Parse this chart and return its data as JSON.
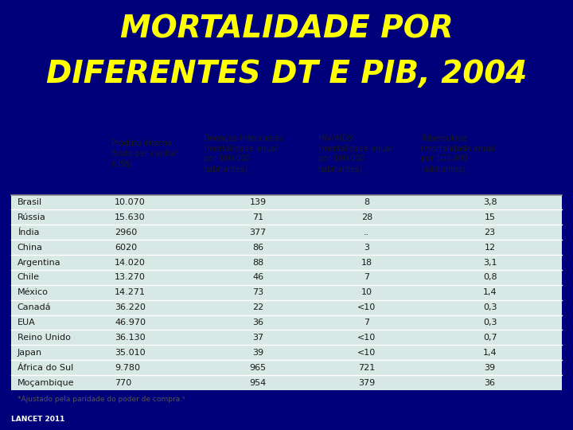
{
  "title_line1": "MORTALIDADE POR",
  "title_line2": "DIFERENTES DT E PIB, 2004",
  "title_color": "#FFFF00",
  "title_bg_color": "#00007A",
  "table_bg_color": "#D8E8E4",
  "row_alt_color": "#C8DDD8",
  "footer_bg_color": "#00007A",
  "footer_text": "LANCET 2011",
  "footer_text_color": "#FFFFFF",
  "footnote": "*Ajustado pela paridade do poder de compra.ˢ",
  "col_headers": [
    "Produto Interno\nBruto per capita*\n(US$)",
    "Doenças Infecciosas\n(mortalidade anual\npor 100.000\nhabitantes)",
    "HIV/AIDS\n(mortalidade anual\npor 100.000\nhabitantes)",
    "Tuberculose\n(mortalidade anual\npor 100.000\nhabitantes)"
  ],
  "countries": [
    "Brasil",
    "Rússia",
    "Índia",
    "China",
    "Argentina",
    "Chile",
    "México",
    "Canadá",
    "EUA",
    "Reino Unido",
    "Japan",
    "África do Sul",
    "Moçambique"
  ],
  "pib": [
    "10.070",
    "15.630",
    "2960",
    "6020",
    "14.020",
    "13.270",
    "14.271",
    "36.220",
    "46.970",
    "36.130",
    "35.010",
    "9.780",
    "770"
  ],
  "doencas": [
    "139",
    "71",
    "377",
    "86",
    "88",
    "46",
    "73",
    "22",
    "36",
    "37",
    "39",
    "965",
    "954"
  ],
  "hiv": [
    "8",
    "28",
    "..",
    "3",
    "18",
    "7",
    "10",
    "<10",
    "7",
    "<10",
    "<10",
    "721",
    "379"
  ],
  "tb": [
    "3,8",
    "15",
    "23",
    "12",
    "3,1",
    "0,8",
    "1,4",
    "0,3",
    "0,3",
    "0,7",
    "1,4",
    "39",
    "36"
  ],
  "title_fontsize": 28,
  "header_fontsize": 7,
  "data_fontsize": 8
}
